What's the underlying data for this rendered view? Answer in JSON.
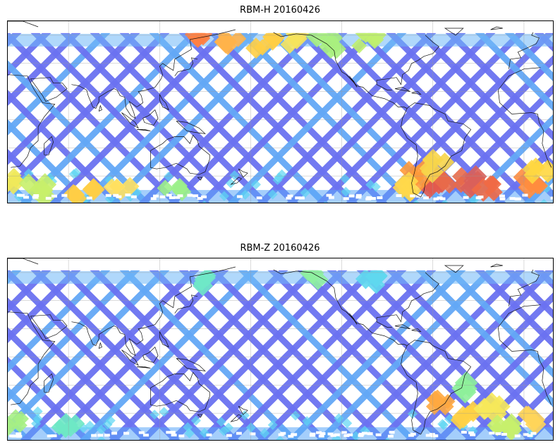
{
  "panels": [
    {
      "title": "RBM-H 20160426",
      "hotspots": [
        {
          "lon": -60,
          "lat": -47,
          "color": "#e25a4e"
        },
        {
          "lon": -48,
          "lat": -42,
          "color": "#e86a4a"
        },
        {
          "lon": -32,
          "lat": -45,
          "color": "#d9605a"
        },
        {
          "lon": -20,
          "lat": -48,
          "color": "#ef6a45"
        },
        {
          "lon": -72,
          "lat": -38,
          "color": "#ff9a3a"
        },
        {
          "lon": -58,
          "lat": -33,
          "color": "#f7d54a"
        },
        {
          "lon": -76,
          "lat": -48,
          "color": "#ffd84a"
        },
        {
          "lon": 5,
          "lat": -45,
          "color": "#ff8c3e"
        },
        {
          "lon": 12,
          "lat": -36,
          "color": "#ffd740"
        },
        {
          "lon": 25,
          "lat": -42,
          "color": "#f0e95a"
        },
        {
          "lon": 40,
          "lat": -50,
          "color": "#c8f06a"
        },
        {
          "lon": 70,
          "lat": -52,
          "color": "#ffce45"
        },
        {
          "lon": 95,
          "lat": -52,
          "color": "#ffe060"
        },
        {
          "lon": 130,
          "lat": -50,
          "color": "#9cf08a"
        },
        {
          "lon": 150,
          "lat": 60,
          "color": "#ff7f42"
        },
        {
          "lon": 165,
          "lat": 57,
          "color": "#ffb34a"
        },
        {
          "lon": -170,
          "lat": 55,
          "color": "#ffce45"
        },
        {
          "lon": -150,
          "lat": 58,
          "color": "#f6e35c"
        },
        {
          "lon": -130,
          "lat": 55,
          "color": "#a8f07e"
        },
        {
          "lon": -105,
          "lat": 57,
          "color": "#c0f06e"
        }
      ]
    },
    {
      "title": "RBM-Z 20160426",
      "hotspots": [
        {
          "lon": -55,
          "lat": -32,
          "color": "#ffa840"
        },
        {
          "lon": -40,
          "lat": -40,
          "color": "#ffd245"
        },
        {
          "lon": -20,
          "lat": -36,
          "color": "#f6e85a"
        },
        {
          "lon": -12,
          "lat": -48,
          "color": "#c6f06c"
        },
        {
          "lon": -35,
          "lat": -22,
          "color": "#8ef09a"
        },
        {
          "lon": 5,
          "lat": -45,
          "color": "#ffd55a"
        },
        {
          "lon": 25,
          "lat": -46,
          "color": "#a6f084"
        },
        {
          "lon": 60,
          "lat": -52,
          "color": "#6ee8c4"
        },
        {
          "lon": 150,
          "lat": 55,
          "color": "#6fe8c6"
        },
        {
          "lon": -140,
          "lat": 57,
          "color": "#8ef0a0"
        },
        {
          "lon": -100,
          "lat": 55,
          "color": "#5fd8ee"
        }
      ]
    }
  ]
}
